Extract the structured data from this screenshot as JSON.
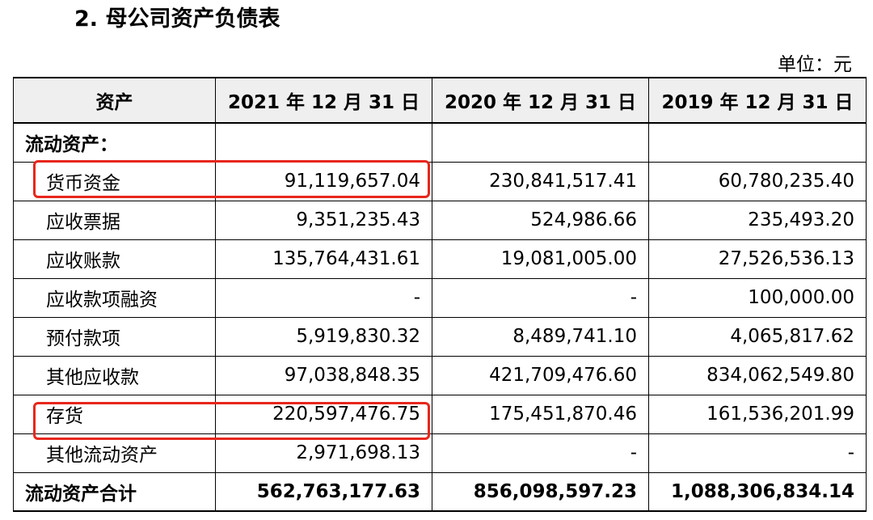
{
  "document": {
    "title": "2. 母公司资产负债表",
    "unit": "单位：元"
  },
  "table": {
    "headers": [
      "资产",
      "2021 年 12 月 31 日",
      "2020 年 12 月 31 日",
      "2019 年 12 月 31 日"
    ],
    "section_label": "流动资产：",
    "rows": [
      {
        "label": "货币资金",
        "v2021": "91,119,657.04",
        "v2020": "230,841,517.41",
        "v2019": "60,780,235.40"
      },
      {
        "label": "应收票据",
        "v2021": "9,351,235.43",
        "v2020": "524,986.66",
        "v2019": "235,493.20"
      },
      {
        "label": "应收账款",
        "v2021": "135,764,431.61",
        "v2020": "19,081,005.00",
        "v2019": "27,526,536.13"
      },
      {
        "label": "应收款项融资",
        "v2021": "-",
        "v2020": "-",
        "v2019": "100,000.00"
      },
      {
        "label": "预付款项",
        "v2021": "5,919,830.32",
        "v2020": "8,489,741.10",
        "v2019": "4,065,817.62"
      },
      {
        "label": "其他应收款",
        "v2021": "97,038,848.35",
        "v2020": "421,709,476.60",
        "v2019": "834,062,549.80"
      },
      {
        "label": "存货",
        "v2021": "220,597,476.75",
        "v2020": "175,451,870.46",
        "v2019": "161,536,201.99"
      },
      {
        "label": "其他流动资产",
        "v2021": "2,971,698.13",
        "v2020": "-",
        "v2019": "-"
      }
    ],
    "total": {
      "label": "流动资产合计",
      "v2021": "562,763,177.63",
      "v2020": "856,098,597.23",
      "v2019": "1,088,306,834.14"
    }
  },
  "highlight_color": "#e8261c"
}
